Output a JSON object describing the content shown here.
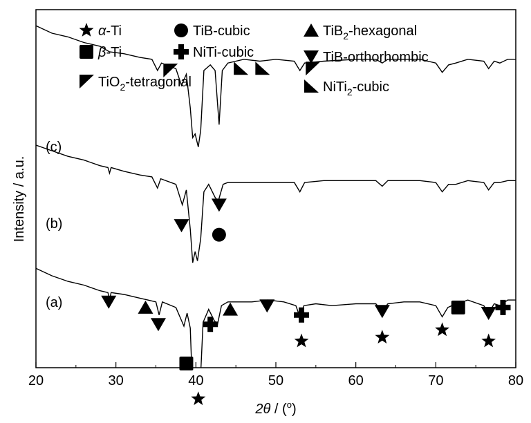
{
  "chart_data": {
    "type": "line",
    "xlabel_italic": "2θ",
    "xlabel_rest": " / (",
    "xlabel_sup": "o",
    "xlabel_end": ")",
    "ylabel": "Intensity / a.u.",
    "xlim": [
      20,
      80
    ],
    "xticks": [
      20,
      30,
      40,
      50,
      60,
      70,
      80
    ],
    "y_ticks_shown": false,
    "series": [
      {
        "id": "a",
        "label": "(a)",
        "color": "#000000",
        "points": [
          [
            20,
            0.34
          ],
          [
            22,
            0.3
          ],
          [
            24,
            0.27
          ],
          [
            26,
            0.25
          ],
          [
            28,
            0.22
          ],
          [
            29.0,
            0.21
          ],
          [
            29.2,
            0.17
          ],
          [
            29.4,
            0.21
          ],
          [
            31,
            0.2
          ],
          [
            33,
            0.18
          ],
          [
            34,
            0.17
          ],
          [
            35.0,
            0.16
          ],
          [
            35.4,
            0.09
          ],
          [
            35.8,
            0.16
          ],
          [
            37.5,
            0.13
          ],
          [
            38.3,
            0.05
          ],
          [
            38.5,
            0.03
          ],
          [
            38.9,
            0.1
          ],
          [
            39.3,
            0.02
          ],
          [
            39.6,
            -0.34
          ],
          [
            39.9,
            -0.33
          ],
          [
            40.2,
            -0.4
          ],
          [
            40.5,
            -0.32
          ],
          [
            40.9,
            0.05
          ],
          [
            41.6,
            0.12
          ],
          [
            42.3,
            0.06
          ],
          [
            42.7,
            0.04
          ],
          [
            43.2,
            0.14
          ],
          [
            44.0,
            0.16
          ],
          [
            44.5,
            0.16
          ],
          [
            45,
            0.16
          ],
          [
            47,
            0.16
          ],
          [
            49,
            0.17
          ],
          [
            51,
            0.16
          ],
          [
            52.5,
            0.14
          ],
          [
            53.0,
            0.08
          ],
          [
            53.5,
            0.14
          ],
          [
            55,
            0.15
          ],
          [
            57,
            0.14
          ],
          [
            60,
            0.15
          ],
          [
            62.5,
            0.15
          ],
          [
            63.3,
            0.11
          ],
          [
            64,
            0.15
          ],
          [
            66,
            0.16
          ],
          [
            68,
            0.16
          ],
          [
            70,
            0.14
          ],
          [
            70.8,
            0.08
          ],
          [
            71.5,
            0.13
          ],
          [
            72,
            0.14
          ],
          [
            74,
            0.17
          ],
          [
            76,
            0.14
          ],
          [
            76.6,
            0.1
          ],
          [
            77.3,
            0.15
          ],
          [
            78,
            0.14
          ],
          [
            79,
            0.17
          ],
          [
            80,
            0.17
          ]
        ]
      },
      {
        "id": "b",
        "label": "(b)",
        "color": "#000000",
        "points": [
          [
            20,
            1.0
          ],
          [
            22,
            0.97
          ],
          [
            24,
            0.94
          ],
          [
            26,
            0.92
          ],
          [
            28,
            0.89
          ],
          [
            29.0,
            0.88
          ],
          [
            29.2,
            0.85
          ],
          [
            29.4,
            0.88
          ],
          [
            31,
            0.86
          ],
          [
            33,
            0.84
          ],
          [
            34.5,
            0.83
          ],
          [
            35.2,
            0.77
          ],
          [
            35.6,
            0.82
          ],
          [
            37.5,
            0.79
          ],
          [
            38.3,
            0.68
          ],
          [
            38.8,
            0.76
          ],
          [
            39.3,
            0.55
          ],
          [
            39.6,
            0.37
          ],
          [
            39.9,
            0.43
          ],
          [
            40.2,
            0.38
          ],
          [
            40.6,
            0.5
          ],
          [
            41.0,
            0.75
          ],
          [
            41.6,
            0.79
          ],
          [
            42.4,
            0.72
          ],
          [
            42.8,
            0.7
          ],
          [
            43.4,
            0.79
          ],
          [
            44,
            0.8
          ],
          [
            46,
            0.8
          ],
          [
            48,
            0.8
          ],
          [
            50,
            0.8
          ],
          [
            52.3,
            0.8
          ],
          [
            53.0,
            0.75
          ],
          [
            53.6,
            0.8
          ],
          [
            56,
            0.81
          ],
          [
            60,
            0.81
          ],
          [
            62.5,
            0.81
          ],
          [
            63.3,
            0.78
          ],
          [
            64,
            0.81
          ],
          [
            66,
            0.81
          ],
          [
            68,
            0.81
          ],
          [
            70,
            0.8
          ],
          [
            70.8,
            0.75
          ],
          [
            71.6,
            0.79
          ],
          [
            72.5,
            0.79
          ],
          [
            74,
            0.81
          ],
          [
            76,
            0.8
          ],
          [
            76.6,
            0.76
          ],
          [
            77.3,
            0.8
          ],
          [
            78,
            0.8
          ],
          [
            79,
            0.81
          ],
          [
            80,
            0.81
          ]
        ]
      },
      {
        "id": "c",
        "label": "(c)",
        "color": "#000000",
        "points": [
          [
            20,
            1.64
          ],
          [
            22,
            1.6
          ],
          [
            24,
            1.58
          ],
          [
            26,
            1.55
          ],
          [
            28,
            1.53
          ],
          [
            29.2,
            1.5
          ],
          [
            31,
            1.49
          ],
          [
            33,
            1.47
          ],
          [
            34.5,
            1.46
          ],
          [
            35.2,
            1.4
          ],
          [
            35.7,
            1.44
          ],
          [
            37.5,
            1.41
          ],
          [
            38.2,
            1.32
          ],
          [
            38.8,
            1.38
          ],
          [
            39.3,
            1.2
          ],
          [
            39.6,
            1.04
          ],
          [
            39.9,
            1.06
          ],
          [
            40.3,
            0.99
          ],
          [
            40.6,
            1.08
          ],
          [
            41.0,
            1.4
          ],
          [
            41.8,
            1.43
          ],
          [
            42.4,
            1.4
          ],
          [
            42.9,
            1.11
          ],
          [
            43.3,
            1.4
          ],
          [
            44,
            1.44
          ],
          [
            46,
            1.46
          ],
          [
            48,
            1.45
          ],
          [
            50,
            1.46
          ],
          [
            52.3,
            1.45
          ],
          [
            53.0,
            1.4
          ],
          [
            53.6,
            1.44
          ],
          [
            56,
            1.45
          ],
          [
            60,
            1.46
          ],
          [
            62.5,
            1.46
          ],
          [
            63.3,
            1.44
          ],
          [
            64,
            1.46
          ],
          [
            66,
            1.46
          ],
          [
            68,
            1.46
          ],
          [
            70,
            1.44
          ],
          [
            70.8,
            1.39
          ],
          [
            71.6,
            1.43
          ],
          [
            72.5,
            1.44
          ],
          [
            74,
            1.46
          ],
          [
            76,
            1.45
          ],
          [
            76.6,
            1.41
          ],
          [
            77.3,
            1.45
          ],
          [
            78,
            1.44
          ],
          [
            79,
            1.46
          ],
          [
            80,
            1.46
          ]
        ]
      }
    ],
    "legend": [
      {
        "symbol": "star",
        "label_italic": "α",
        "label": "-Ti"
      },
      {
        "symbol": "circle",
        "label": "TiB-cubic"
      },
      {
        "symbol": "triangle-up",
        "label": "TiB",
        "sub": "2",
        "label_end": "-hexagonal"
      },
      {
        "symbol": "square",
        "label_italic": "β",
        "label": "-Ti"
      },
      {
        "symbol": "cross",
        "label": "NiTi-cubic"
      },
      {
        "symbol": "triangle-down",
        "label": "TiB-orthorhombic"
      },
      {
        "symbol": "tio2",
        "label": "TiO",
        "sub": "2",
        "label_end": "-tetragonal"
      },
      {
        "symbol": "niti2",
        "label": "NiTi",
        "sub": "2",
        "label_end": "-cubic"
      }
    ],
    "markers": [
      {
        "series": "a",
        "symbol": "triangle-down",
        "x": 29.1,
        "yo": 0.16
      },
      {
        "series": "a",
        "symbol": "triangle-up",
        "x": 33.7,
        "yo": 0.13
      },
      {
        "series": "a",
        "symbol": "triangle-down",
        "x": 35.3,
        "yo": 0.04
      },
      {
        "series": "a",
        "symbol": "square",
        "x": 38.8,
        "yo": -0.17
      },
      {
        "series": "a",
        "symbol": "star",
        "x": 40.3,
        "yo": -0.36
      },
      {
        "series": "a",
        "symbol": "cross",
        "x": 41.8,
        "yo": 0.04
      },
      {
        "series": "a",
        "symbol": "triangle-up",
        "x": 44.3,
        "yo": 0.12
      },
      {
        "series": "a",
        "symbol": "triangle-down",
        "x": 48.9,
        "yo": 0.14
      },
      {
        "series": "a",
        "symbol": "cross",
        "x": 53.2,
        "yo": 0.09
      },
      {
        "series": "a",
        "symbol": "star",
        "x": 53.2,
        "yo": -0.05
      },
      {
        "series": "a",
        "symbol": "triangle-down",
        "x": 63.3,
        "yo": 0.11
      },
      {
        "series": "a",
        "symbol": "star",
        "x": 63.3,
        "yo": -0.03
      },
      {
        "series": "a",
        "symbol": "star",
        "x": 70.8,
        "yo": 0.01
      },
      {
        "series": "a",
        "symbol": "square",
        "x": 72.8,
        "yo": 0.13
      },
      {
        "series": "a",
        "symbol": "triangle-down",
        "x": 76.6,
        "yo": 0.1
      },
      {
        "series": "a",
        "symbol": "star",
        "x": 76.6,
        "yo": -0.05
      },
      {
        "series": "a",
        "symbol": "cross",
        "x": 78.4,
        "yo": 0.13
      },
      {
        "series": "b",
        "symbol": "triangle-down",
        "x": 38.2,
        "yo": 0.57
      },
      {
        "series": "b",
        "symbol": "circle",
        "x": 42.9,
        "yo": 0.52
      },
      {
        "series": "b",
        "symbol": "triangle-down",
        "x": 42.9,
        "yo": 0.68
      },
      {
        "series": "c",
        "symbol": "tio2",
        "x": 36.8,
        "yo": 1.4
      },
      {
        "series": "c",
        "symbol": "niti2",
        "x": 45.6,
        "yo": 1.41
      },
      {
        "series": "c",
        "symbol": "niti2",
        "x": 48.3,
        "yo": 1.41
      },
      {
        "series": "c",
        "symbol": "tio2",
        "x": 54.6,
        "yo": 1.41
      }
    ]
  }
}
